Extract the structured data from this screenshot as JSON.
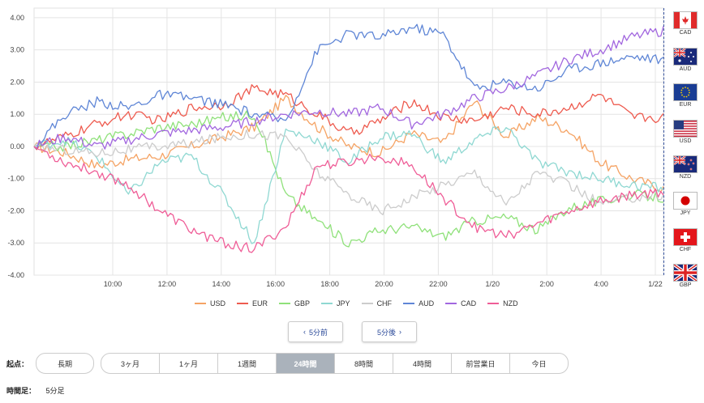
{
  "chart_data": {
    "type": "line",
    "x_ticks": [
      "10:00",
      "12:00",
      "14:00",
      "16:00",
      "18:00",
      "20:00",
      "22:00",
      "1/20",
      "2:00",
      "4:00",
      "1/22"
    ],
    "ylim": [
      -4,
      4.3
    ],
    "y_ticks": [
      "4.00",
      "3.00",
      "2.00",
      "1.00",
      "0.00",
      "-1.00",
      "-2.00",
      "-3.00",
      "-4.00"
    ],
    "grid": true,
    "legend_position": "bottom",
    "series": [
      {
        "name": "USD",
        "color": "#f5a364",
        "values": [
          0,
          -0.2,
          -0.6,
          -0.4,
          -0.3,
          0.0,
          0.3,
          0.6,
          1.5,
          0.6,
          0.0,
          -0.2,
          0.4,
          0.1,
          1.4,
          0.3,
          0.9,
          0.5,
          -0.5,
          -1.0,
          -1.3
        ]
      },
      {
        "name": "EUR",
        "color": "#ee5b4f",
        "values": [
          0,
          0.3,
          0.7,
          1.0,
          0.8,
          1.2,
          1.3,
          1.8,
          1.6,
          1.0,
          0.4,
          0.8,
          1.4,
          0.9,
          0.8,
          1.2,
          1.0,
          1.2,
          1.6,
          0.9,
          0.9
        ]
      },
      {
        "name": "GBP",
        "color": "#8fe17a",
        "values": [
          0,
          0.0,
          0.2,
          0.4,
          0.6,
          0.7,
          0.9,
          1.0,
          -1.5,
          -2.3,
          -3.0,
          -2.6,
          -2.5,
          -2.8,
          -2.3,
          -2.2,
          -2.6,
          -1.9,
          -1.7,
          -1.5,
          -1.6
        ]
      },
      {
        "name": "JPY",
        "color": "#8fd8d2",
        "values": [
          0,
          0.2,
          -0.3,
          -1.5,
          -0.5,
          -0.3,
          -1.5,
          -3.0,
          0.5,
          0.2,
          -0.5,
          0.3,
          0.4,
          -0.5,
          0.2,
          0.6,
          -0.5,
          -0.8,
          -1.0,
          -1.2,
          -1.3
        ]
      },
      {
        "name": "CHF",
        "color": "#cccccc",
        "values": [
          0,
          -0.1,
          -0.2,
          -0.1,
          0.0,
          0.1,
          0.3,
          0.4,
          0.3,
          -0.8,
          -1.5,
          -2.0,
          -1.6,
          -1.2,
          -0.8,
          -1.8,
          -0.8,
          -1.2,
          -1.8,
          -1.6,
          -1.5
        ]
      },
      {
        "name": "AUD",
        "color": "#5f86d6",
        "values": [
          0,
          1.0,
          1.4,
          1.2,
          1.6,
          1.5,
          1.3,
          1.0,
          0.8,
          3.0,
          3.5,
          3.4,
          3.7,
          3.5,
          1.8,
          2.0,
          1.8,
          2.4,
          2.6,
          2.8,
          2.7
        ]
      },
      {
        "name": "CAD",
        "color": "#a267df",
        "values": [
          0,
          0.3,
          0.0,
          0.2,
          0.4,
          0.5,
          0.6,
          0.8,
          1.0,
          1.1,
          1.0,
          1.2,
          0.7,
          1.0,
          1.5,
          1.8,
          2.2,
          2.7,
          3.0,
          3.4,
          3.6
        ]
      },
      {
        "name": "NZD",
        "color": "#ef5d97",
        "values": [
          0,
          -0.5,
          -0.8,
          -1.2,
          -2.0,
          -2.6,
          -3.0,
          -3.2,
          -2.5,
          -0.6,
          -0.5,
          -0.3,
          -0.6,
          -1.6,
          -2.5,
          -2.8,
          -2.4,
          -2.0,
          -1.7,
          -1.5,
          -1.4
        ]
      }
    ]
  },
  "flags": [
    {
      "code": "CAD"
    },
    {
      "code": "AUD"
    },
    {
      "code": "EUR"
    },
    {
      "code": "USD"
    },
    {
      "code": "NZD"
    },
    {
      "code": "JPY"
    },
    {
      "code": "CHF"
    },
    {
      "code": "GBP"
    }
  ],
  "nav": {
    "prev_label": "5分前",
    "next_label": "5分後"
  },
  "period": {
    "label": "起点：",
    "long_label": "長期",
    "options": [
      "3ヶ月",
      "1ヶ月",
      "1週間",
      "24時間",
      "8時間",
      "4時間",
      "前営業日",
      "今日"
    ],
    "active": "24時間"
  },
  "timeframe": {
    "label": "時間足：",
    "value": "5分足"
  }
}
